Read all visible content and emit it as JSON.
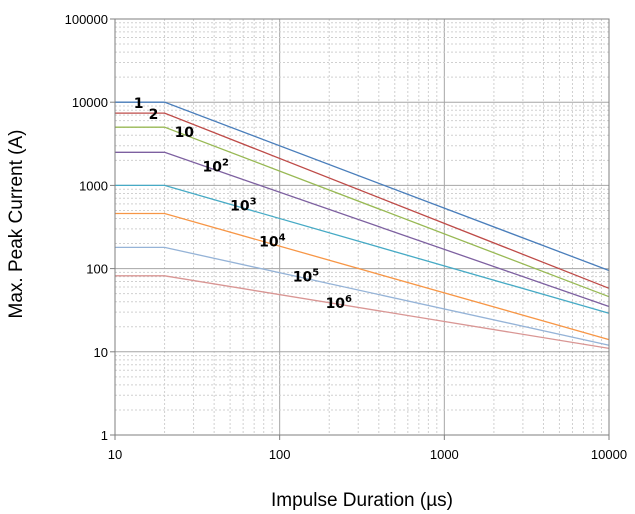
{
  "chart_data": {
    "type": "line",
    "xlabel": "Impulse Duration (µs)",
    "ylabel": "Max. Peak Current (A)",
    "xscale": "log",
    "yscale": "log",
    "xlim": [
      10,
      10000
    ],
    "ylim": [
      1,
      100000
    ],
    "grid": true,
    "legend": "none",
    "x_ticks": [
      "10",
      "100",
      "1000",
      "10000"
    ],
    "y_ticks": [
      "1",
      "10",
      "100",
      "1000",
      "10000",
      "100000"
    ],
    "series": [
      {
        "label_base": "1",
        "label_exp": "",
        "color": "#4a7ebb",
        "x": [
          10,
          20,
          10000
        ],
        "y": [
          10000,
          10000,
          95
        ]
      },
      {
        "label_base": "2",
        "label_exp": "",
        "color": "#be4b48",
        "x": [
          10,
          20,
          10000
        ],
        "y": [
          7400,
          7400,
          58
        ]
      },
      {
        "label_base": "10",
        "label_exp": "",
        "color": "#98b954",
        "x": [
          10,
          20,
          10000
        ],
        "y": [
          5000,
          5000,
          46
        ]
      },
      {
        "label_base": "10",
        "label_exp": "2",
        "color": "#7d60a0",
        "x": [
          10,
          20,
          10000
        ],
        "y": [
          2500,
          2500,
          35
        ]
      },
      {
        "label_base": "10",
        "label_exp": "3",
        "color": "#46aac5",
        "x": [
          10,
          20,
          10000
        ],
        "y": [
          1000,
          1000,
          29
        ]
      },
      {
        "label_base": "10",
        "label_exp": "4",
        "color": "#f79646",
        "x": [
          10,
          20,
          10000
        ],
        "y": [
          460,
          460,
          14
        ]
      },
      {
        "label_base": "10",
        "label_exp": "5",
        "color": "#95b3d7",
        "x": [
          10,
          20,
          10000
        ],
        "y": [
          180,
          180,
          12
        ]
      },
      {
        "label_base": "10",
        "label_exp": "6",
        "color": "#d99694",
        "x": [
          10,
          20,
          10000
        ],
        "y": [
          82,
          82,
          11
        ]
      }
    ]
  }
}
